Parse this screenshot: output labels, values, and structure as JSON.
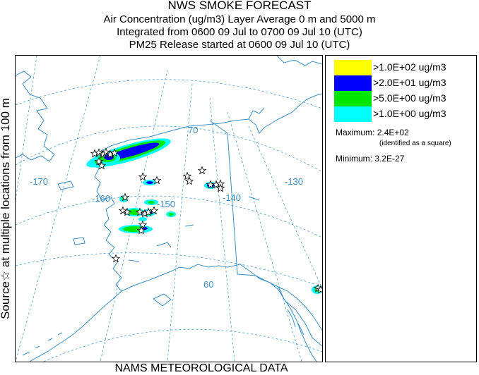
{
  "title": {
    "line1": "NWS SMOKE FORECAST",
    "line2": "Air Concentration (ug/m3) Layer Average    0 m and  5000 m",
    "line3": "Integrated from 0600 09 Jul to 0700 09 Jul 10 (UTC)",
    "line4": "PM25 Release started at 0600 09 Jul 10 (UTC)"
  },
  "footer": "NAMS METEOROLOGICAL DATA",
  "side_label": "Source☆  at multiple locations    from   100 m",
  "map": {
    "longitude_labels": [
      "-170",
      "-160",
      "-150",
      "-140",
      "-130"
    ],
    "latitude_labels": [
      "70",
      "60"
    ],
    "colors": {
      "coast": "#3a8fc4",
      "grid": "#4aa0d0",
      "label": "#3a8fc4"
    }
  },
  "legend": {
    "items": [
      {
        "label": ">1.0E+02 ug/m3",
        "color": "#ffff00"
      },
      {
        "label": ">2.0E+01 ug/m3",
        "color": "#0000ff"
      },
      {
        "label": ">5.0E+00 ug/m3",
        "color": "#00e600"
      },
      {
        "label": ">1.0E+00 ug/m3",
        "color": "#00ffff"
      }
    ],
    "maximum_label": "Maximum:",
    "maximum_value": "2.4E+02",
    "maximum_note": "(identified as a square)",
    "minimum_label": "Minimum:",
    "minimum_value": "3.2E-27"
  }
}
